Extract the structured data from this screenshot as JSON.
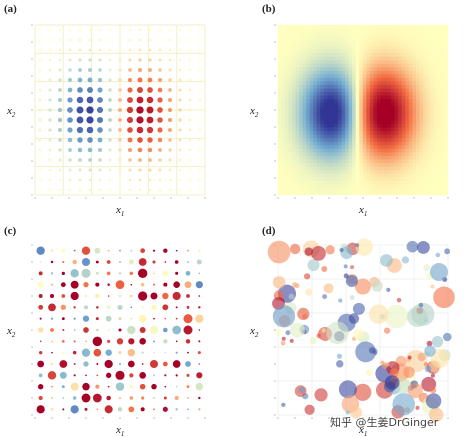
{
  "panels": [
    {
      "label": "(a)",
      "x_label": {
        "symbol": "x",
        "subscript": "1"
      },
      "y_label": {
        "symbol": "x",
        "subscript": "2"
      }
    },
    {
      "label": "(b)",
      "x_label": {
        "symbol": "x",
        "subscript": "1"
      },
      "y_label": {
        "symbol": "x",
        "subscript": "2"
      }
    },
    {
      "label": "(c)",
      "x_label": {
        "symbol": "x",
        "subscript": "1"
      },
      "y_label": {
        "symbol": "x",
        "subscript": "2"
      }
    },
    {
      "label": "(d)",
      "x_label": {
        "symbol": "x",
        "subscript": "1"
      },
      "y_label": {
        "symbol": "x",
        "subscript": "2"
      }
    }
  ],
  "watermark": "知乎 @生姜DrGinger"
}
